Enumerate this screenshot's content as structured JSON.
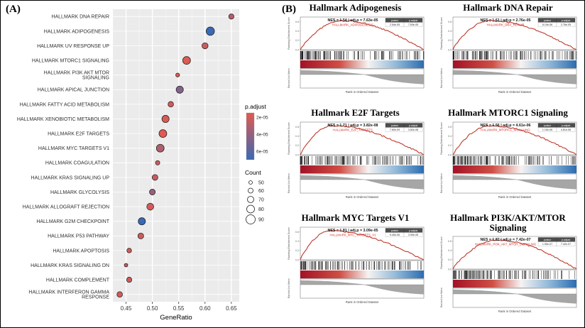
{
  "figure": {
    "panel_a_label": "(A)",
    "panel_b_label": "(B)"
  },
  "chart_data": [
    {
      "type": "scatter",
      "name": "hallmark-enrichment-dotplot",
      "xlabel": "GeneRatio",
      "xlim": [
        0.425,
        0.665
      ],
      "xticks": [
        0.45,
        0.5,
        0.55,
        0.6,
        0.65
      ],
      "xtick_labels": [
        "0.45",
        "0.50",
        "0.55",
        "0.60",
        "0.65"
      ],
      "legend_padjust": {
        "title": "p.adjust",
        "range": [
          1.5e-05,
          7e-05
        ],
        "color_low": "#df5a52",
        "color_high": "#3b69b3",
        "ticks": [
          {
            "label": "2e-05",
            "value": 2e-05
          },
          {
            "label": "4e-05",
            "value": 4e-05
          },
          {
            "label": "6e-05",
            "value": 6e-05
          }
        ]
      },
      "legend_count": {
        "title": "Count",
        "items": [
          50,
          60,
          70,
          80,
          90
        ]
      },
      "points": [
        {
          "label": "HALLMARK DNA REPAIR",
          "lines": [
            "HALLMARK DNA REPAIR"
          ],
          "gene_ratio": 0.65,
          "count": 62,
          "p_adjust": 2.76e-05
        },
        {
          "label": "HALLMARK ADIPOGENESIS",
          "lines": [
            "HALLMARK ADIPOGENESIS"
          ],
          "gene_ratio": 0.61,
          "count": 84,
          "p_adjust": 7.63e-05
        },
        {
          "label": "HALLMARK UV RESPONSE UP",
          "lines": [
            "HALLMARK UV RESPONSE UP"
          ],
          "gene_ratio": 0.6,
          "count": 68,
          "p_adjust": 2.2e-05
        },
        {
          "label": "HALLMARK MTORC1 SIGNALING",
          "lines": [
            "HALLMARK MTORC1 SIGNALING"
          ],
          "gene_ratio": 0.565,
          "count": 80,
          "p_adjust": 4.61e-06
        },
        {
          "label": "HALLMARK PI3K AKT MTOR SIGNALING",
          "lines": [
            "HALLMARK PI3K AKT MTOR",
            "SIGNALING"
          ],
          "gene_ratio": 0.548,
          "count": 52,
          "p_adjust": 7.42e-07
        },
        {
          "label": "HALLMARK APICAL JUNCTION",
          "lines": [
            "HALLMARK APICAL JUNCTION"
          ],
          "gene_ratio": 0.552,
          "count": 76,
          "p_adjust": 4.6e-05
        },
        {
          "label": "HALLMARK FATTY ACID METABOLISM",
          "lines": [
            "HALLMARK FATTY ACID METABOLISM"
          ],
          "gene_ratio": 0.535,
          "count": 64,
          "p_adjust": 2e-05
        },
        {
          "label": "HALLMARK XENOBIOTIC METABOLISM",
          "lines": [
            "HALLMARK XENOBIOTIC METABOLISM"
          ],
          "gene_ratio": 0.525,
          "count": 76,
          "p_adjust": 1.8e-05
        },
        {
          "label": "HALLMARK E2F TARGETS",
          "lines": [
            "HALLMARK E2F TARGETS"
          ],
          "gene_ratio": 0.52,
          "count": 80,
          "p_adjust": 3.82e-08
        },
        {
          "label": "HALLMARK MYC TARGETS V1",
          "lines": [
            "HALLMARK MYC TARGETS V1"
          ],
          "gene_ratio": 0.515,
          "count": 80,
          "p_adjust": 3.09e-05
        },
        {
          "label": "HALLMARK COAGULATION",
          "lines": [
            "HALLMARK COAGULATION"
          ],
          "gene_ratio": 0.51,
          "count": 56,
          "p_adjust": 2e-05
        },
        {
          "label": "HALLMARK KRAS SIGNALING UP",
          "lines": [
            "HALLMARK KRAS SIGNALING UP"
          ],
          "gene_ratio": 0.505,
          "count": 66,
          "p_adjust": 2.4e-05
        },
        {
          "label": "HALLMARK GLYCOLYSIS",
          "lines": [
            "HALLMARK GLYCOLYSIS"
          ],
          "gene_ratio": 0.5,
          "count": 66,
          "p_adjust": 3.8e-05
        },
        {
          "label": "HALLMARK ALLOGRAFT REJECTION",
          "lines": [
            "HALLMARK ALLOGRAFT REJECTION"
          ],
          "gene_ratio": 0.496,
          "count": 74,
          "p_adjust": 2e-05
        },
        {
          "label": "HALLMARK G2M CHECKPOINT",
          "lines": [
            "HALLMARK G2M CHECKPOINT"
          ],
          "gene_ratio": 0.48,
          "count": 76,
          "p_adjust": 7e-05
        },
        {
          "label": "HALLMARK P53 PATHWAY",
          "lines": [
            "HALLMARK P53 PATHWAY"
          ],
          "gene_ratio": 0.478,
          "count": 66,
          "p_adjust": 2.2e-05
        },
        {
          "label": "HALLMARK APOPTOSIS",
          "lines": [
            "HALLMARK APOPTOSIS"
          ],
          "gene_ratio": 0.456,
          "count": 58,
          "p_adjust": 2e-05
        },
        {
          "label": "HALLMARK KRAS SIGNALING DN",
          "lines": [
            "HALLMARK KRAS SIGNALING DN"
          ],
          "gene_ratio": 0.45,
          "count": 50,
          "p_adjust": 2.6e-05
        },
        {
          "label": "HALLMARK COMPLEMENT",
          "lines": [
            "HALLMARK COMPLEMENT"
          ],
          "gene_ratio": 0.456,
          "count": 62,
          "p_adjust": 2e-05
        },
        {
          "label": "HALLMARK INTERFERON GAMMA RESPONSE",
          "lines": [
            "HALLMARK INTERFERON GAMMA",
            "RESPONSE"
          ],
          "gene_ratio": 0.438,
          "count": 64,
          "p_adjust": 2e-05
        }
      ]
    },
    {
      "type": "line",
      "name": "gsea-enrichment-plots",
      "stats_headers": [
        "pvalue",
        "p.adjust"
      ],
      "ylabel_top": "Running Enrichment Score",
      "ylabel_bottom": "Ranked List Metric",
      "xlabel": "Rank in Ordered Dataset",
      "es_yticks": [
        "0.6",
        "0.4",
        "0.2",
        "0.0"
      ],
      "plots": [
        {
          "title": "Hallmark Adipogenesis",
          "set_label": "HALLMARK_ADIPOGENESIS",
          "nes": 1.54,
          "annotation": "NES = 1.54 | adj.p = 7.63e-05",
          "pvalue": "2.54e-05",
          "p_adjust": "7.63e-05",
          "peak": 0.34
        },
        {
          "title": "Hallmark DNA Repair",
          "set_label": "HALLMARK_DNA_REPAIR",
          "nes": 1.61,
          "annotation": "NES = 1.61 | adj.p = 2.76e-05",
          "pvalue": "8.10e-06",
          "p_adjust": "2.76e-05",
          "peak": 0.3
        },
        {
          "title": "Hallmark E2F Targets",
          "set_label": "HALLMARK_E2F_TARGETS",
          "nes": 1.71,
          "annotation": "NES = 1.71 | adj.p = 3.82e-08",
          "pvalue": "7.60e-09",
          "p_adjust": "3.82e-08",
          "peak": 0.26
        },
        {
          "title": "Hallmark MTORC1 Signaling",
          "set_label": "HALLMARK_MTORC1_SIGNALING",
          "nes": 1.56,
          "annotation": "NES = 1.56 | adj.p = 4.61e-06",
          "pvalue": "1.10e-06",
          "p_adjust": "4.61e-06",
          "peak": 0.3
        },
        {
          "title": "Hallmark MYC Targets V1",
          "set_label": "HALLMARK_MYC_TARGETS_V1",
          "nes": 1.81,
          "annotation": "NES = 1.81 | adj.p = 3.09e-05",
          "pvalue": "9.40e-06",
          "p_adjust": "3.09e-05",
          "peak": 0.24
        },
        {
          "title": "Hallmark PI3K/AKT/MTOR Signaling",
          "set_label": "HALLMARK_PI3K_AKT_MTOR_SIGNALING",
          "nes": 1.82,
          "annotation": "NES = 1.82 | adj.p = 7.42e-07",
          "pvalue": "1.90e-07",
          "p_adjust": "7.42e-07",
          "peak": 0.36
        }
      ]
    }
  ]
}
